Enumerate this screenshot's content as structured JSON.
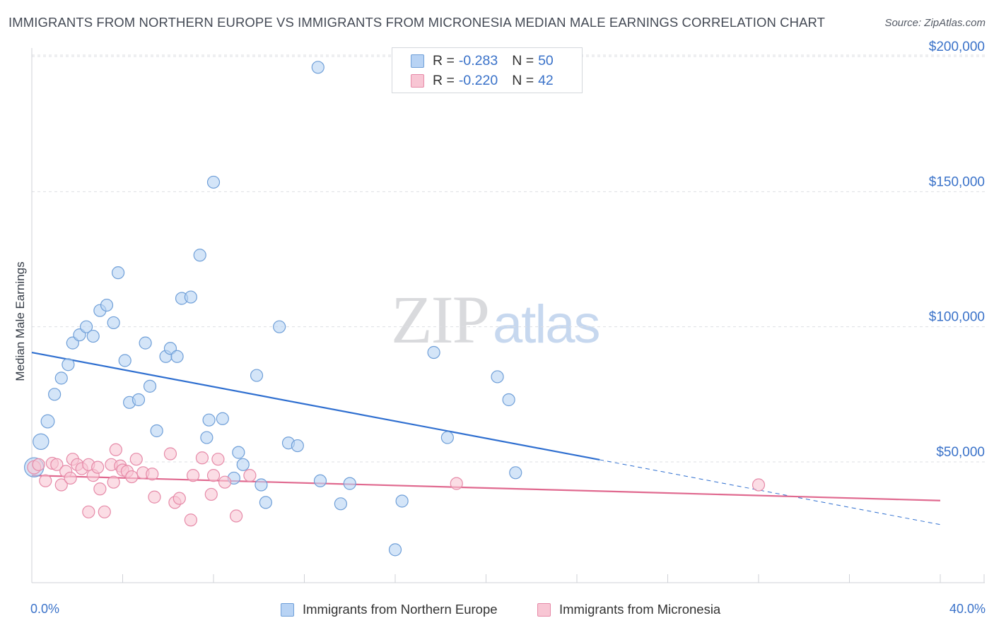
{
  "header": {
    "title": "IMMIGRANTS FROM NORTHERN EUROPE VS IMMIGRANTS FROM MICRONESIA MEDIAN MALE EARNINGS CORRELATION CHART",
    "source": "Source: ZipAtlas.com"
  },
  "watermark": {
    "zip": "ZIP",
    "atlas": "atlas"
  },
  "stats_legend": {
    "rows": [
      {
        "r_label": "R =",
        "r_value": "-0.283",
        "n_label": "N =",
        "n_value": "50"
      },
      {
        "r_label": "R =",
        "r_value": "-0.220",
        "n_label": "N =",
        "n_value": "42"
      }
    ]
  },
  "colors": {
    "blue_fill": "#b8d3f4",
    "blue_stroke": "#6f9fd8",
    "blue_line": "#2f6fd0",
    "pink_fill": "#f8c6d4",
    "pink_stroke": "#e68aa8",
    "pink_line": "#e0698f",
    "tick_label": "#3a72c9",
    "grid": "#dddfe3"
  },
  "chart_data": {
    "type": "scatter",
    "title": "IMMIGRANTS FROM NORTHERN EUROPE VS IMMIGRANTS FROM MICRONESIA MEDIAN MALE EARNINGS CORRELATION CHART",
    "xlabel": "",
    "ylabel": "Median Male Earnings",
    "xlim": [
      0,
      40
    ],
    "ylim": [
      5000,
      210000
    ],
    "x_tick_labels": [
      "0.0%",
      "40.0%"
    ],
    "y_ticks": [
      50000,
      100000,
      150000,
      200000
    ],
    "y_tick_labels": [
      "$50,000",
      "$100,000",
      "$150,000",
      "$200,000"
    ],
    "grid": "horizontal dashed",
    "legend": "top-center and bottom",
    "series": [
      {
        "name": "Immigrants from Northern Europe",
        "color": "#6f9fd8",
        "points": [
          [
            0.1,
            48000,
            1.6
          ],
          [
            0.4,
            57500,
            1.3
          ],
          [
            0.7,
            65000,
            1.1
          ],
          [
            1.0,
            75000,
            1
          ],
          [
            1.3,
            81000,
            1
          ],
          [
            1.6,
            86000,
            1
          ],
          [
            1.8,
            94000,
            1
          ],
          [
            2.1,
            97000,
            1
          ],
          [
            2.4,
            100000,
            1
          ],
          [
            2.7,
            96500,
            1
          ],
          [
            3.0,
            106000,
            1
          ],
          [
            3.3,
            108000,
            1
          ],
          [
            3.6,
            101500,
            1
          ],
          [
            3.8,
            120000,
            1
          ],
          [
            4.1,
            87500,
            1
          ],
          [
            4.3,
            72000,
            1
          ],
          [
            4.7,
            73000,
            1
          ],
          [
            5.0,
            94000,
            1
          ],
          [
            5.2,
            78000,
            1
          ],
          [
            5.5,
            61500,
            1
          ],
          [
            5.9,
            89000,
            1
          ],
          [
            6.1,
            92000,
            1
          ],
          [
            6.4,
            89000,
            1
          ],
          [
            6.6,
            110500,
            1
          ],
          [
            7.0,
            111000,
            1
          ],
          [
            7.4,
            126500,
            1
          ],
          [
            7.7,
            59000,
            1
          ],
          [
            7.8,
            65500,
            1
          ],
          [
            8.0,
            153500,
            1
          ],
          [
            8.4,
            66000,
            1
          ],
          [
            8.9,
            44000,
            1
          ],
          [
            9.1,
            53500,
            1
          ],
          [
            9.3,
            49000,
            1
          ],
          [
            9.9,
            82000,
            1
          ],
          [
            10.1,
            41500,
            1
          ],
          [
            10.3,
            35000,
            1
          ],
          [
            10.9,
            100000,
            1
          ],
          [
            11.3,
            57000,
            1
          ],
          [
            11.7,
            56000,
            1
          ],
          [
            12.6,
            196000,
            1
          ],
          [
            12.7,
            43000,
            1
          ],
          [
            13.6,
            34500,
            1
          ],
          [
            14.0,
            42000,
            1
          ],
          [
            16.0,
            17500,
            1
          ],
          [
            16.3,
            35500,
            1
          ],
          [
            17.7,
            90500,
            1
          ],
          [
            18.3,
            59000,
            1
          ],
          [
            20.5,
            81500,
            1
          ],
          [
            21.0,
            73000,
            1
          ],
          [
            21.3,
            46000,
            1
          ]
        ]
      },
      {
        "name": "Immigrants from Micronesia",
        "color": "#e68aa8",
        "points": [
          [
            0.1,
            48000,
            1.1
          ],
          [
            0.3,
            49000,
            1
          ],
          [
            0.6,
            43000,
            1
          ],
          [
            0.9,
            49500,
            1
          ],
          [
            1.1,
            49000,
            1
          ],
          [
            1.3,
            41500,
            1
          ],
          [
            1.5,
            46500,
            1
          ],
          [
            1.7,
            44000,
            1
          ],
          [
            1.8,
            51000,
            1
          ],
          [
            2.0,
            49000,
            1
          ],
          [
            2.2,
            47500,
            1
          ],
          [
            2.5,
            31500,
            1
          ],
          [
            2.5,
            49000,
            1
          ],
          [
            2.7,
            45000,
            1
          ],
          [
            2.9,
            48000,
            1
          ],
          [
            3.0,
            40000,
            1
          ],
          [
            3.2,
            31500,
            1
          ],
          [
            3.5,
            49000,
            1
          ],
          [
            3.6,
            42500,
            1
          ],
          [
            3.7,
            54500,
            1
          ],
          [
            3.9,
            48500,
            1
          ],
          [
            4.0,
            47000,
            1
          ],
          [
            4.2,
            46500,
            1
          ],
          [
            4.4,
            44500,
            1
          ],
          [
            4.6,
            51000,
            1
          ],
          [
            4.9,
            46000,
            1
          ],
          [
            5.3,
            45500,
            1
          ],
          [
            5.4,
            37000,
            1
          ],
          [
            6.1,
            53000,
            1
          ],
          [
            6.3,
            35000,
            1
          ],
          [
            6.5,
            36500,
            1
          ],
          [
            7.0,
            28500,
            1
          ],
          [
            7.1,
            45000,
            1
          ],
          [
            7.5,
            51500,
            1
          ],
          [
            7.9,
            38000,
            1
          ],
          [
            8.0,
            45000,
            1
          ],
          [
            8.2,
            51000,
            1
          ],
          [
            8.5,
            42500,
            1
          ],
          [
            9.0,
            30000,
            1
          ],
          [
            9.6,
            45000,
            1
          ],
          [
            18.7,
            42000,
            1
          ],
          [
            32.0,
            41500,
            1
          ]
        ]
      }
    ],
    "trendlines": [
      {
        "series": "Immigrants from Northern Europe",
        "x_start": 0,
        "y_start": 90500,
        "x_solid_end": 25.0,
        "y_solid_end": 50800,
        "x_end": 40,
        "y_end": 26800
      },
      {
        "series": "Immigrants from Micronesia",
        "x_start": 0,
        "y_start": 45000,
        "x_end": 40,
        "y_end": 35700
      }
    ]
  }
}
